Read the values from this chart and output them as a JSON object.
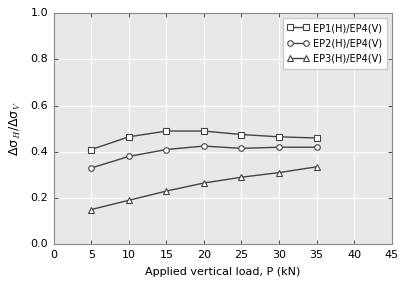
{
  "x": [
    5,
    10,
    15,
    20,
    25,
    30,
    35
  ],
  "ep1": [
    0.41,
    0.465,
    0.49,
    0.49,
    0.475,
    0.465,
    0.46
  ],
  "ep2": [
    0.33,
    0.38,
    0.41,
    0.425,
    0.415,
    0.42,
    0.42
  ],
  "ep3": [
    0.15,
    0.19,
    0.23,
    0.265,
    0.29,
    0.31,
    0.335
  ],
  "xlabel": "Applied vertical load, P (kN)",
  "ylabel": "Δσ$_H$/Δσ$_V$",
  "xlim": [
    0,
    45
  ],
  "ylim": [
    0.0,
    1.0
  ],
  "xticks": [
    0,
    5,
    10,
    15,
    20,
    25,
    30,
    35,
    40,
    45
  ],
  "yticks": [
    0.0,
    0.2,
    0.4,
    0.6,
    0.8,
    1.0
  ],
  "legend": [
    "EP1(H)/EP4(V)",
    "EP2(H)/EP4(V)",
    "EP3(H)/EP4(V)"
  ],
  "line_color": "#444444",
  "marker_ep1": "s",
  "marker_ep2": "o",
  "marker_ep3": "^",
  "markersize": 4,
  "linewidth": 1.0,
  "bg_color": "#e8e8e8"
}
